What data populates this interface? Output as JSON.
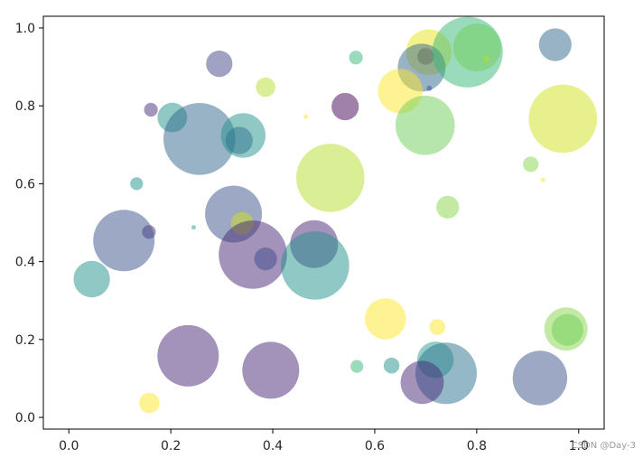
{
  "chart_data": {
    "type": "scatter",
    "title": "",
    "xlabel": "",
    "ylabel": "",
    "xlim": [
      -0.05,
      1.05
    ],
    "ylim": [
      -0.03,
      1.03
    ],
    "xticks": [
      0.0,
      0.2,
      0.4,
      0.6,
      0.8,
      1.0
    ],
    "yticks": [
      0.0,
      0.2,
      0.4,
      0.6,
      0.8,
      1.0
    ],
    "xtick_labels": [
      "0.0",
      "0.2",
      "0.4",
      "0.6",
      "0.8",
      "1.0"
    ],
    "ytick_labels": [
      "0.0",
      "0.2",
      "0.4",
      "0.6",
      "0.8",
      "1.0"
    ],
    "grid": false,
    "opacity": 0.5,
    "colormap": "viridis",
    "points": [
      {
        "x": 0.295,
        "y": 0.908,
        "size": 0.58,
        "color": "#414487"
      },
      {
        "x": 0.386,
        "y": 0.848,
        "size": 0.43,
        "color": "#b5de2b"
      },
      {
        "x": 0.563,
        "y": 0.924,
        "size": 0.3,
        "color": "#35b779"
      },
      {
        "x": 0.7,
        "y": 0.927,
        "size": 0.37,
        "color": "#440154"
      },
      {
        "x": 0.706,
        "y": 0.938,
        "size": 1.0,
        "color": "#e7e419"
      },
      {
        "x": 0.692,
        "y": 0.898,
        "size": 1.05,
        "color": "#31688e"
      },
      {
        "x": 0.782,
        "y": 0.938,
        "size": 1.55,
        "color": "#35b779"
      },
      {
        "x": 0.801,
        "y": 0.95,
        "size": 1.05,
        "color": "#6ece58"
      },
      {
        "x": 0.819,
        "y": 0.921,
        "size": 0.15,
        "color": "#b5de2b"
      },
      {
        "x": 0.954,
        "y": 0.957,
        "size": 0.72,
        "color": "#31688e"
      },
      {
        "x": 0.161,
        "y": 0.79,
        "size": 0.3,
        "color": "#472d7b"
      },
      {
        "x": 0.203,
        "y": 0.77,
        "size": 0.65,
        "color": "#21918c"
      },
      {
        "x": 0.256,
        "y": 0.715,
        "size": 1.58,
        "color": "#31688e"
      },
      {
        "x": 0.342,
        "y": 0.724,
        "size": 0.98,
        "color": "#21918c"
      },
      {
        "x": 0.334,
        "y": 0.711,
        "size": 0.6,
        "color": "#2c728e"
      },
      {
        "x": 0.465,
        "y": 0.772,
        "size": 0.1,
        "color": "#fde725"
      },
      {
        "x": 0.542,
        "y": 0.798,
        "size": 0.6,
        "color": "#440154"
      },
      {
        "x": 0.65,
        "y": 0.838,
        "size": 0.98,
        "color": "#fde725"
      },
      {
        "x": 0.707,
        "y": 0.845,
        "size": 0.12,
        "color": "#3b528b"
      },
      {
        "x": 0.699,
        "y": 0.75,
        "size": 1.3,
        "color": "#6ece58"
      },
      {
        "x": 0.969,
        "y": 0.767,
        "size": 1.5,
        "color": "#d2e21b"
      },
      {
        "x": 0.513,
        "y": 0.615,
        "size": 1.5,
        "color": "#b5de2b"
      },
      {
        "x": 0.133,
        "y": 0.6,
        "size": 0.28,
        "color": "#21918c"
      },
      {
        "x": 0.906,
        "y": 0.65,
        "size": 0.34,
        "color": "#86d549"
      },
      {
        "x": 0.93,
        "y": 0.61,
        "size": 0.1,
        "color": "#fde725"
      },
      {
        "x": 0.743,
        "y": 0.54,
        "size": 0.5,
        "color": "#86d549"
      },
      {
        "x": 0.323,
        "y": 0.522,
        "size": 1.25,
        "color": "#3b528b"
      },
      {
        "x": 0.34,
        "y": 0.498,
        "size": 0.5,
        "color": "#d2e21b"
      },
      {
        "x": 0.245,
        "y": 0.488,
        "size": 0.1,
        "color": "#2a9d8f"
      },
      {
        "x": 0.157,
        "y": 0.476,
        "size": 0.3,
        "color": "#472d7b"
      },
      {
        "x": 0.108,
        "y": 0.454,
        "size": 1.35,
        "color": "#3b528b"
      },
      {
        "x": 0.361,
        "y": 0.418,
        "size": 1.5,
        "color": "#482878"
      },
      {
        "x": 0.386,
        "y": 0.407,
        "size": 0.5,
        "color": "#3e4989"
      },
      {
        "x": 0.481,
        "y": 0.445,
        "size": 1.05,
        "color": "#482878"
      },
      {
        "x": 0.483,
        "y": 0.39,
        "size": 1.5,
        "color": "#21918c"
      },
      {
        "x": 0.045,
        "y": 0.355,
        "size": 0.8,
        "color": "#21918c"
      },
      {
        "x": 0.621,
        "y": 0.253,
        "size": 0.9,
        "color": "#fde725"
      },
      {
        "x": 0.723,
        "y": 0.232,
        "size": 0.35,
        "color": "#fde725"
      },
      {
        "x": 0.975,
        "y": 0.227,
        "size": 0.95,
        "color": "#86d549"
      },
      {
        "x": 0.978,
        "y": 0.225,
        "size": 0.7,
        "color": "#6ece58"
      },
      {
        "x": 0.234,
        "y": 0.158,
        "size": 1.35,
        "color": "#482878"
      },
      {
        "x": 0.396,
        "y": 0.121,
        "size": 1.25,
        "color": "#482878"
      },
      {
        "x": 0.565,
        "y": 0.131,
        "size": 0.28,
        "color": "#35b779"
      },
      {
        "x": 0.633,
        "y": 0.133,
        "size": 0.35,
        "color": "#21918c"
      },
      {
        "x": 0.719,
        "y": 0.148,
        "size": 0.8,
        "color": "#2a9d8f"
      },
      {
        "x": 0.74,
        "y": 0.113,
        "size": 1.35,
        "color": "#2c728e"
      },
      {
        "x": 0.693,
        "y": 0.09,
        "size": 0.95,
        "color": "#482878"
      },
      {
        "x": 0.924,
        "y": 0.101,
        "size": 1.2,
        "color": "#3b528b"
      },
      {
        "x": 0.158,
        "y": 0.037,
        "size": 0.45,
        "color": "#fde725"
      }
    ]
  },
  "watermark": "CSDN @Day-3"
}
